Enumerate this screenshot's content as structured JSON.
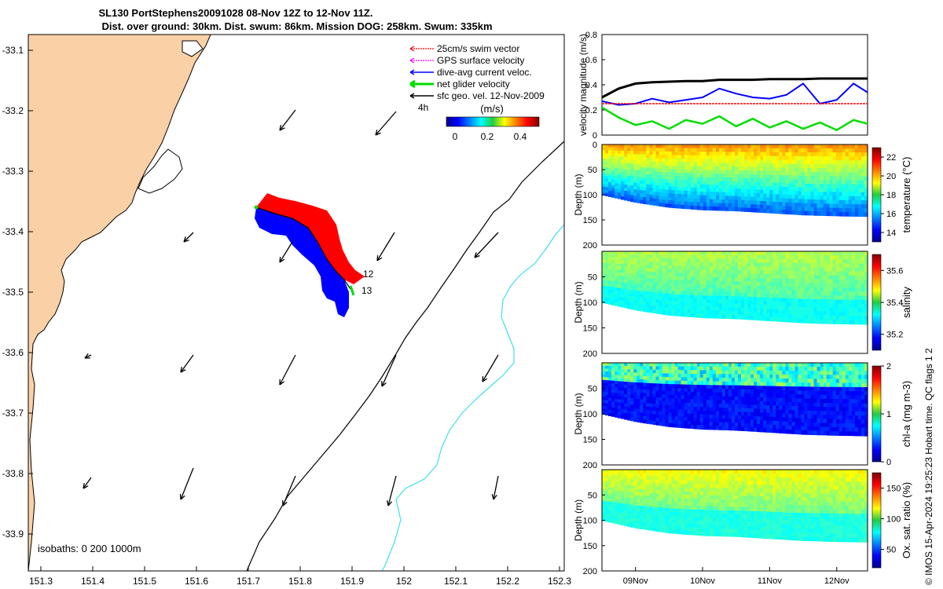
{
  "title": {
    "line1": "SL130 PortStephens20091028 08-Nov 12Z to 12-Nov 11Z.",
    "line2": "Dist. over ground: 30km. Dist. swum: 86km. Mission DOG: 258km. Swum: 335km"
  },
  "colors": {
    "land": "#FAD0A6",
    "coast": "#000000",
    "isobath_200": "#000000",
    "isobath_1000": "#3FE0E8",
    "swim": "#FF0000",
    "gps": "#FF00FF",
    "current": "#0000FF",
    "net": "#00DD00",
    "geo": "#000000",
    "track_upper": "#FF0000",
    "track_lower": "#0000FF"
  },
  "map": {
    "lon_ticks": [
      "151.3",
      "151.4",
      "151.5",
      "151.6",
      "151.7",
      "151.8",
      "151.9",
      "152",
      "152.1",
      "152.2",
      "152.3"
    ],
    "lat_ticks": [
      "-33.1",
      "-33.2",
      "-33.3",
      "-33.4",
      "-33.5",
      "-33.6",
      "-33.7",
      "-33.8",
      "-33.9"
    ],
    "isobaths_label": "isobaths: 0   200  1000m",
    "day_labels": [
      "12",
      "13"
    ],
    "scale_label": "4h",
    "speed_unit": "(m/s)",
    "speed_ticks": [
      "0",
      "0.2",
      "0.4"
    ],
    "legend": [
      {
        "label": "25cm/s swim vector",
        "icon": "swim-vector-icon"
      },
      {
        "label": "GPS surface velocity",
        "icon": "gps-velocity-icon"
      },
      {
        "label": "dive-avg current veloc.",
        "icon": "current-velocity-icon"
      },
      {
        "label": "net glider velocity",
        "icon": "net-velocity-icon"
      },
      {
        "label": "sfc geo. vel. 12-Nov-2009",
        "icon": "geo-velocity-icon"
      }
    ]
  },
  "chart_data": [
    {
      "type": "line",
      "title": "",
      "xlabel": "",
      "ylabel": "velocity magnitude (m/s)",
      "ylim": [
        0,
        0.8
      ],
      "yticks": [
        "0",
        "0.2",
        "0.4",
        "0.6",
        "0.8"
      ],
      "x_days": [
        8.5,
        8.75,
        9.0,
        9.25,
        9.5,
        9.75,
        10.0,
        10.25,
        10.5,
        10.75,
        11.0,
        11.25,
        11.5,
        11.75,
        12.0,
        12.25,
        12.46
      ],
      "series": [
        {
          "key": "geo",
          "values": [
            0.3,
            0.37,
            0.41,
            0.42,
            0.425,
            0.43,
            0.43,
            0.44,
            0.44,
            0.44,
            0.445,
            0.445,
            0.445,
            0.45,
            0.45,
            0.45,
            0.45
          ]
        },
        {
          "key": "current",
          "values": [
            0.27,
            0.24,
            0.25,
            0.29,
            0.26,
            0.28,
            0.3,
            0.37,
            0.33,
            0.3,
            0.29,
            0.32,
            0.41,
            0.25,
            0.28,
            0.41,
            0.34
          ]
        },
        {
          "key": "swim",
          "values": [
            0.25,
            0.25,
            0.25,
            0.25,
            0.25,
            0.25,
            0.25,
            0.25,
            0.25,
            0.25,
            0.25,
            0.25,
            0.25,
            0.25,
            0.25,
            0.25,
            0.25
          ]
        },
        {
          "key": "net",
          "values": [
            0.22,
            0.14,
            0.08,
            0.11,
            0.05,
            0.12,
            0.09,
            0.15,
            0.07,
            0.13,
            0.06,
            0.11,
            0.05,
            0.1,
            0.04,
            0.12,
            0.09
          ]
        }
      ]
    },
    {
      "type": "heatmap",
      "title": "",
      "ylabel": "Depth (m)",
      "clabel": "temperature (°C)",
      "ylim": [
        200,
        0
      ],
      "yticks": [
        "0",
        "50",
        "100",
        "150",
        "200"
      ],
      "cticks": [
        "14",
        "16",
        "18",
        "20",
        "22"
      ],
      "crange": [
        13,
        23
      ],
      "x_days": [
        8.5,
        9.0,
        9.5,
        10.0,
        10.5,
        11.0,
        11.5,
        12.0,
        12.46
      ],
      "max_depth_m": [
        100,
        115,
        125,
        130,
        132,
        136,
        140,
        142,
        143
      ]
    },
    {
      "type": "heatmap",
      "title": "",
      "ylabel": "Depth (m)",
      "clabel": "salinity",
      "ylim": [
        200,
        0
      ],
      "yticks": [
        "50",
        "100",
        "150",
        "200"
      ],
      "cticks": [
        "35.2",
        "35.4",
        "35.6"
      ],
      "crange": [
        35.1,
        35.7
      ],
      "x_days": [
        8.5,
        9.0,
        9.5,
        10.0,
        10.5,
        11.0,
        11.5,
        12.0,
        12.46
      ],
      "max_depth_m": [
        100,
        115,
        125,
        130,
        132,
        136,
        140,
        142,
        143
      ]
    },
    {
      "type": "heatmap",
      "title": "",
      "ylabel": "Depth (m)",
      "clabel": "chl-a (mg m-3)",
      "ylim": [
        200,
        0
      ],
      "yticks": [
        "50",
        "100",
        "150",
        "200"
      ],
      "cticks": [
        "0",
        "1",
        "2"
      ],
      "crange": [
        0,
        2
      ],
      "x_days": [
        8.5,
        9.0,
        9.5,
        10.0,
        10.5,
        11.0,
        11.5,
        12.0,
        12.46
      ],
      "max_depth_m": [
        100,
        115,
        125,
        130,
        132,
        136,
        140,
        142,
        143
      ]
    },
    {
      "type": "heatmap",
      "title": "",
      "ylabel": "Depth (m)",
      "clabel": "Ox. sat. ratio (%)",
      "ylim": [
        200,
        0
      ],
      "yticks": [
        "50",
        "100",
        "150",
        "200"
      ],
      "cticks": [
        "50",
        "100",
        "150"
      ],
      "crange": [
        20,
        175
      ],
      "x_days": [
        8.5,
        9.0,
        9.5,
        10.0,
        10.5,
        11.0,
        11.5,
        12.0,
        12.46
      ],
      "max_depth_m": [
        100,
        115,
        125,
        130,
        132,
        136,
        140,
        142,
        143
      ],
      "x_ticks": [
        "09Nov",
        "10Nov",
        "11Nov",
        "12Nov"
      ]
    }
  ],
  "side_note": "© IMOS 15-Apr-2024 19:25:23 Hobart time. QC flags 1  2"
}
